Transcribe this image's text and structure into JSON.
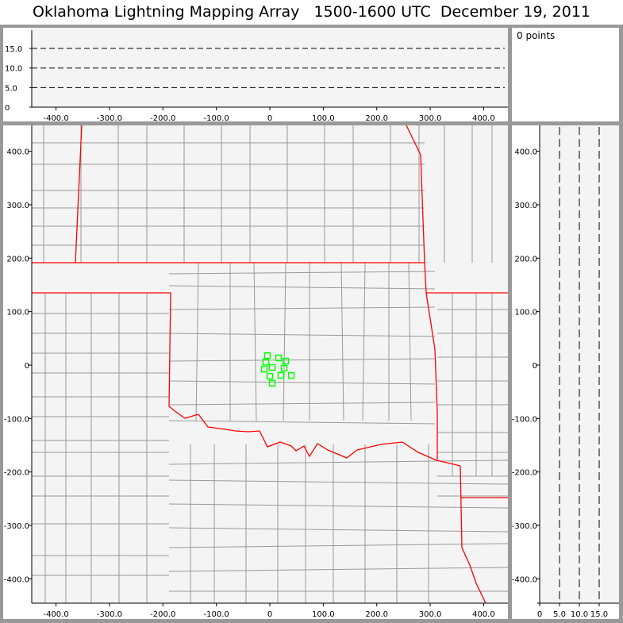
{
  "title": "Oklahoma Lightning Mapping Array   1500-1600 UTC  December 19, 2011",
  "info_panel": {
    "points_label": "0 points"
  },
  "colors": {
    "frame": "#999999",
    "panel": "#f4f4f4",
    "state_border": "#ff0000",
    "county_border": "#999999",
    "marker": "#00ff00"
  },
  "chart_data": [
    {
      "type": "scatter",
      "panel": "altitude-vs-x",
      "xlim": [
        -450,
        445
      ],
      "ylim": [
        0,
        20
      ],
      "x_ticks": [
        "-400.0",
        "-300.0",
        "-200.0",
        "-100.0",
        "0",
        "100.0",
        "200.0",
        "300.0",
        "400.0"
      ],
      "x_tick_values": [
        -400,
        -300,
        -200,
        -100,
        0,
        100,
        200,
        300,
        400
      ],
      "y_ticks": [
        "0",
        "5.0",
        "10.0",
        "15.0"
      ],
      "y_tick_values": [
        0,
        5,
        10,
        15
      ],
      "dashed_gridlines": [
        5,
        10,
        15
      ],
      "points": []
    },
    {
      "type": "scatter",
      "panel": "plan-view",
      "xlim": [
        -450,
        445
      ],
      "ylim": [
        -445,
        450
      ],
      "x_ticks": [
        "-400.0",
        "-300.0",
        "-200.0",
        "-100.0",
        "0",
        "100.0",
        "200.0",
        "300.0",
        "400.0"
      ],
      "x_tick_values": [
        -400,
        -300,
        -200,
        -100,
        0,
        100,
        200,
        300,
        400
      ],
      "y_ticks": [
        "400.0",
        "300.0",
        "200.0",
        "100.0",
        "0",
        "-100.0",
        "-200.0",
        "-300.0",
        "-400.0"
      ],
      "y_tick_values": [
        400,
        300,
        200,
        100,
        0,
        -100,
        -200,
        -300,
        -400
      ],
      "markers": [
        {
          "x": -4.5,
          "y": 17.8
        },
        {
          "x": -7.4,
          "y": 5.9
        },
        {
          "x": 16.3,
          "y": 13.4
        },
        {
          "x": 29.7,
          "y": 7.4
        },
        {
          "x": -10.4,
          "y": -7.4
        },
        {
          "x": 4.5,
          "y": -4.5
        },
        {
          "x": 26.7,
          "y": -5.9
        },
        {
          "x": 0,
          "y": -20.8
        },
        {
          "x": 20.8,
          "y": -19.3
        },
        {
          "x": 40.1,
          "y": -19.3
        },
        {
          "x": 4.5,
          "y": -34.1
        }
      ],
      "points": []
    },
    {
      "type": "scatter",
      "panel": "altitude-vs-y",
      "xlim": [
        0,
        20
      ],
      "ylim": [
        -445,
        450
      ],
      "x_ticks": [
        "0",
        "5.0",
        "10.0",
        "15.0"
      ],
      "x_tick_values": [
        0,
        5,
        10,
        15
      ],
      "y_ticks": [
        "400.0",
        "300.0",
        "200.0",
        "100.0",
        "0",
        "-100.0",
        "-200.0",
        "-300.0",
        "-400.0"
      ],
      "y_tick_values": [
        400,
        300,
        200,
        100,
        0,
        -100,
        -200,
        -300,
        -400
      ],
      "dashed_gridlines": [
        5,
        10,
        15
      ],
      "points": []
    }
  ]
}
